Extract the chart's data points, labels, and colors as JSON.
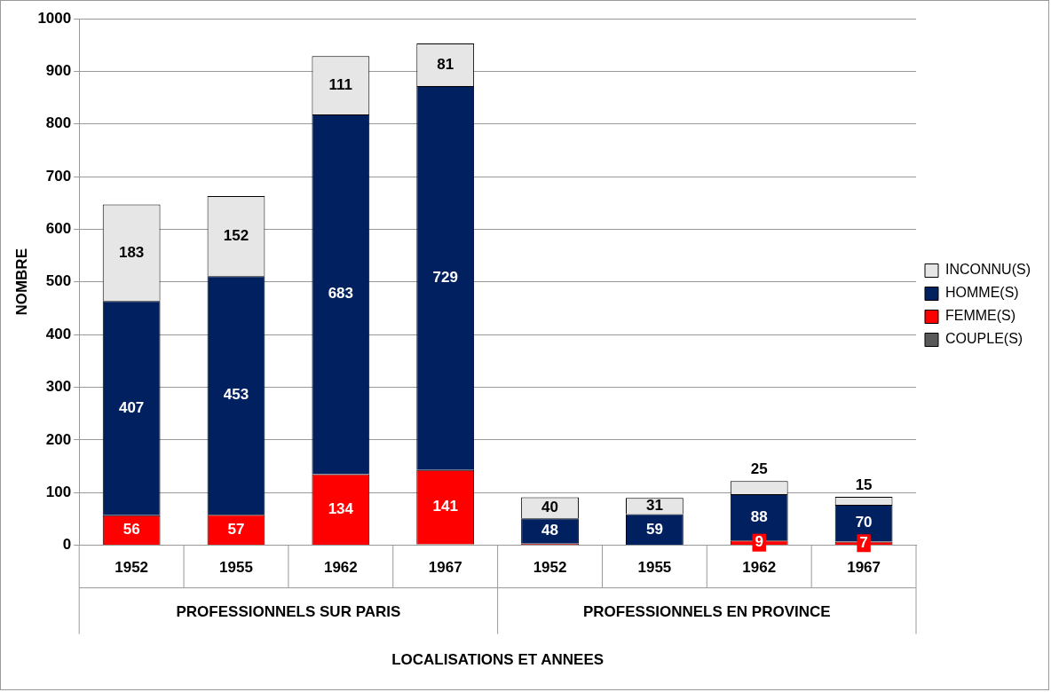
{
  "chart_data": {
    "type": "bar",
    "stacked": true,
    "xlabel": "LOCALISATIONS ET ANNEES",
    "ylabel": "NOMBRE",
    "categories": [
      "1952",
      "1955",
      "1962",
      "1967",
      "1952",
      "1955",
      "1962",
      "1967"
    ],
    "annotations": [
      {
        "text": "PROFESSIONNELS SUR PARIS"
      },
      {
        "text": "PROFESSIONNELS EN PROVINCE"
      }
    ],
    "series": [
      {
        "name": "COUPLE(S)",
        "color": "#595959",
        "values": [
          1,
          1,
          1,
          2,
          0,
          0,
          0,
          0
        ],
        "value_labels": [
          null,
          null,
          null,
          null,
          null,
          null,
          null,
          null
        ]
      },
      {
        "name": "FEMME(S)",
        "color": "#ff0000",
        "values": [
          56,
          57,
          134,
          141,
          3,
          null,
          9,
          7
        ],
        "value_labels": [
          "56",
          "57",
          "134",
          "141",
          null,
          null,
          "9",
          "7"
        ]
      },
      {
        "name": "HOMME(S)",
        "color": "#002060",
        "values": [
          407,
          453,
          683,
          729,
          48,
          59,
          88,
          70
        ],
        "value_labels": [
          "407",
          "453",
          "683",
          "729",
          "48",
          "59",
          "88",
          "70"
        ]
      },
      {
        "name": "INCONNU(S)",
        "color": "#e6e6e6",
        "values": [
          183,
          152,
          111,
          81,
          40,
          31,
          25,
          15
        ],
        "value_labels": [
          "183",
          "152",
          "111",
          "81",
          "40",
          "31",
          "25",
          "15"
        ]
      }
    ],
    "ylim": [
      0,
      1000
    ],
    "yticks": [
      0,
      100,
      200,
      300,
      400,
      500,
      600,
      700,
      800,
      900,
      1000
    ],
    "grid": "y",
    "legend": "right"
  }
}
